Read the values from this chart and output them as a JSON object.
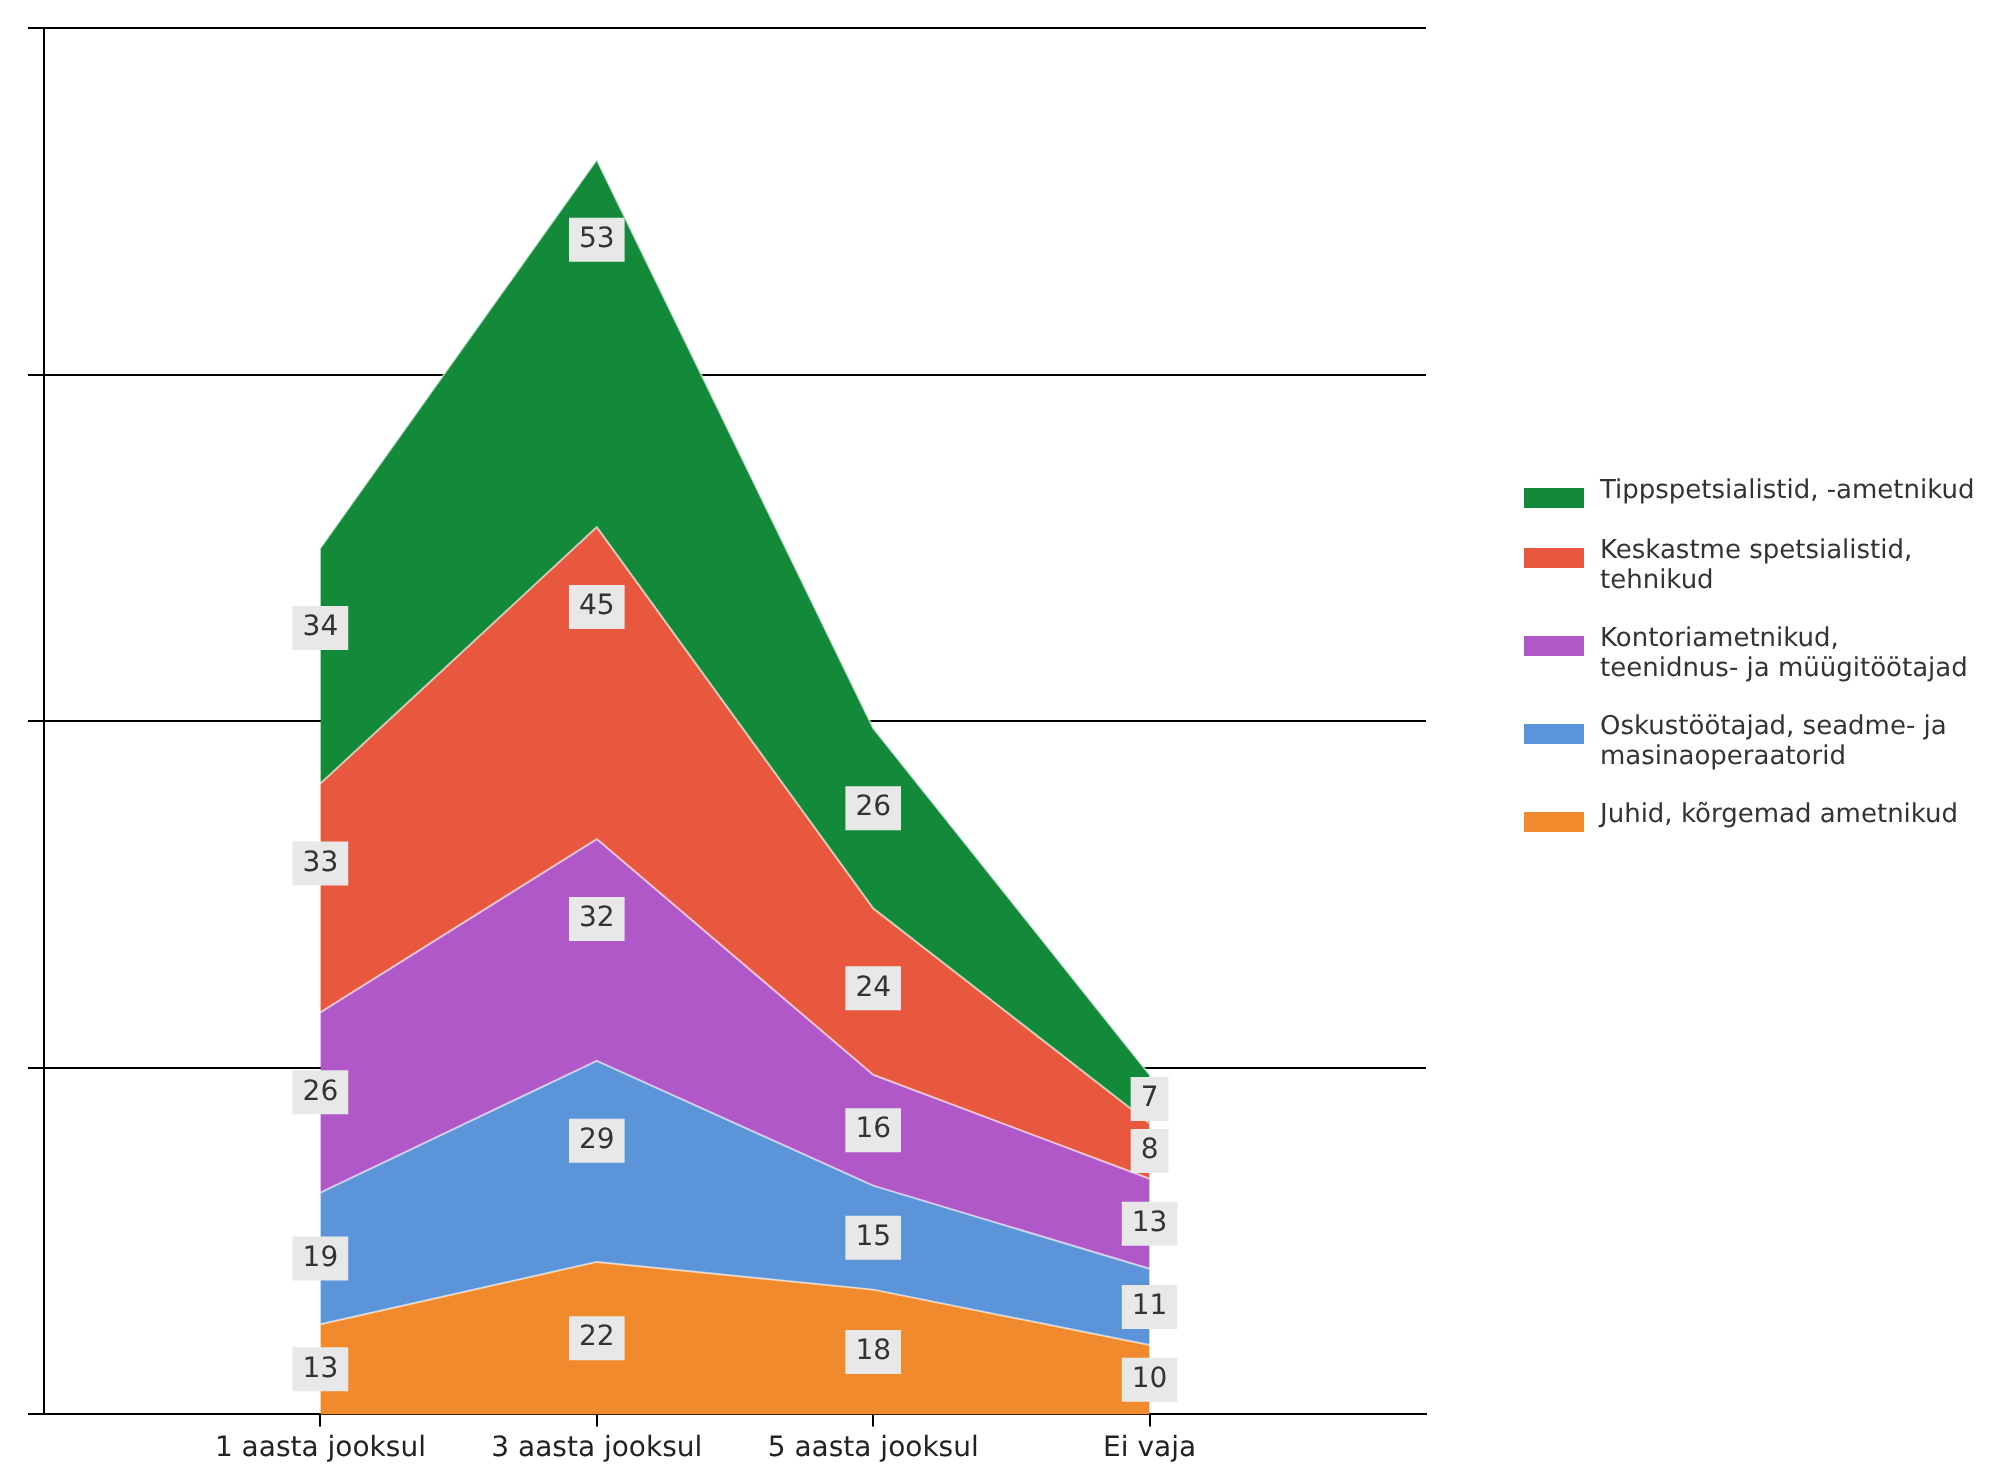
{
  "chart_data": {
    "type": "area",
    "stacked": true,
    "categories": [
      "1 aasta jooksul",
      "3 aasta jooksul",
      "5 aasta jooksul",
      "Ei vaja"
    ],
    "series": [
      {
        "name": "Juhid, kõrgemad ametnikud",
        "color": "#f08a2c",
        "values": [
          13,
          22,
          18,
          10
        ]
      },
      {
        "name": "Oskustöötajad, seadme- ja masinaoperaatorid",
        "color": "#5b94d8",
        "values": [
          19,
          29,
          15,
          11
        ]
      },
      {
        "name": "Kontoriametnikud, teenidnus- ja müügitöötajad",
        "color": "#b058c8",
        "values": [
          26,
          32,
          16,
          13
        ]
      },
      {
        "name": "Keskastme spetsialistid, tehnikud",
        "color": "#e8583e",
        "values": [
          33,
          45,
          24,
          8
        ]
      },
      {
        "name": "Tippspetsialistid, -ametnikud",
        "color": "#138a3a",
        "values": [
          34,
          53,
          26,
          7
        ]
      }
    ],
    "ylim": [
      0,
      200
    ],
    "yticks": [
      {
        "value": 0,
        "label": null
      },
      {
        "value": 50,
        "label": null
      },
      {
        "value": 100,
        "label": null
      },
      {
        "value": 150,
        "label": null
      },
      {
        "value": 200,
        "label": null
      }
    ],
    "tick_labels": "x",
    "grid": "y",
    "legend": "right",
    "data_labels": true
  }
}
